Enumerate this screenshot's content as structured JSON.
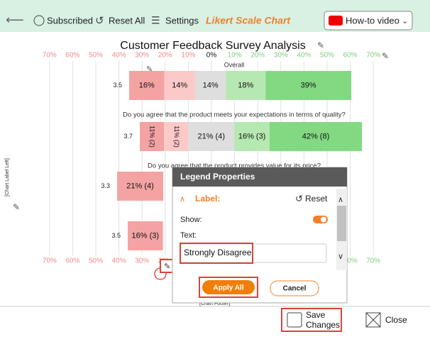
{
  "toolbar": {
    "subscribed": "Subscribed",
    "reset_all": "Reset All",
    "settings": "Settings",
    "app_title": "Likert Scale Chart",
    "video_button": "How-to video"
  },
  "chart": {
    "title": "Customer Feedback Survey Analysis",
    "chart_label_left": "[Chart Label Left]",
    "footer": "[Chart Footer]",
    "segment_colors": [
      "#f4a3a3",
      "#fcc9c9",
      "#dedede",
      "#b6e8b2",
      "#82d982"
    ],
    "xticks": [
      {
        "value": -70,
        "label": "70%"
      },
      {
        "value": -60,
        "label": "60%"
      },
      {
        "value": -50,
        "label": "50%"
      },
      {
        "value": -40,
        "label": "40%"
      },
      {
        "value": -30,
        "label": "30%"
      },
      {
        "value": -20,
        "label": "20%"
      },
      {
        "value": -10,
        "label": "10%"
      },
      {
        "value": 0,
        "label": "0%"
      },
      {
        "value": 10,
        "label": "10%"
      },
      {
        "value": 20,
        "label": "20%"
      },
      {
        "value": 30,
        "label": "30%"
      },
      {
        "value": 40,
        "label": "40%"
      },
      {
        "value": 50,
        "label": "50%"
      },
      {
        "value": 60,
        "label": "60%"
      },
      {
        "value": 70,
        "label": "70%"
      }
    ],
    "rows": [
      {
        "question": "Overall",
        "average": 3.5,
        "segments": [
          {
            "value": 16,
            "label": "16%"
          },
          {
            "value": 14,
            "label": "14%"
          },
          {
            "value": 14,
            "label": "14%"
          },
          {
            "value": 18,
            "label": "18%"
          },
          {
            "value": 39,
            "label": "39%"
          }
        ]
      },
      {
        "question": "Do you agree that the product meets your expectations in terms of quality?",
        "average": 3.7,
        "segments": [
          {
            "value": 11,
            "label": "11% (2)"
          },
          {
            "value": 11,
            "label": "11% (2)"
          },
          {
            "value": 21,
            "label": "21% (4)"
          },
          {
            "value": 16,
            "label": "16% (3)"
          },
          {
            "value": 42,
            "label": "42% (8)"
          }
        ]
      },
      {
        "question": "Do you agree that the product provides value for its price?",
        "average": 3.3,
        "segments": [
          {
            "value": 21,
            "label": "21% (4)"
          }
        ]
      },
      {
        "average": 3.5,
        "segments": [
          {
            "value": 16,
            "label": "16% (3)"
          }
        ]
      }
    ]
  },
  "dialog": {
    "title": "Legend Properties",
    "section_label": "Label:",
    "reset": "Reset",
    "show_label": "Show:",
    "text_label": "Text:",
    "text_value": "Strongly Disagree",
    "apply": "Apply All",
    "cancel": "Cancel"
  },
  "footer": {
    "save_line1": "Save",
    "save_line2": "Changes",
    "close": "Close"
  }
}
